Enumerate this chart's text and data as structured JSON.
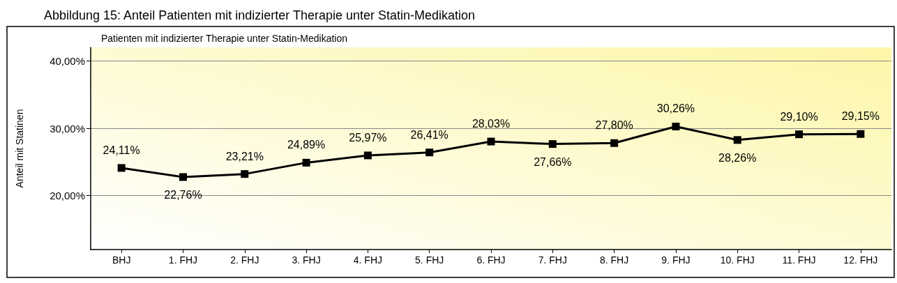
{
  "chart_data": {
    "type": "line",
    "title": "Abbildung 15: Anteil Patienten mit indizierter Therapie unter Statin-Medikation",
    "subtitle": "Patienten mit indizierter Therapie unter Statin-Medikation",
    "ylabel": "Anteil mit Statinen",
    "categories": [
      "BHJ",
      "1. FHJ",
      "2. FHJ",
      "3. FHJ",
      "4. FHJ",
      "5. FHJ",
      "6. FHJ",
      "7. FHJ",
      "8. FHJ",
      "9. FHJ",
      "10. FHJ",
      "11. FHJ",
      "12. FHJ"
    ],
    "values": [
      24.11,
      22.76,
      23.21,
      24.89,
      25.97,
      26.41,
      28.03,
      27.66,
      27.8,
      30.26,
      28.26,
      29.1,
      29.15
    ],
    "value_labels": [
      "24,11%",
      "22,76%",
      "23,21%",
      "24,89%",
      "25,97%",
      "26,41%",
      "28,03%",
      "27,66%",
      "27,80%",
      "30,26%",
      "28,26%",
      "29,10%",
      "29,15%"
    ],
    "color": "#000000",
    "ylim": [
      12,
      42
    ],
    "yticks": [
      {
        "value": 20,
        "label": "20,00%"
      },
      {
        "value": 30,
        "label": "30,00%"
      },
      {
        "value": 40,
        "label": "40,00%"
      }
    ],
    "grid": "y",
    "marker": "square",
    "line_style": "solid"
  }
}
